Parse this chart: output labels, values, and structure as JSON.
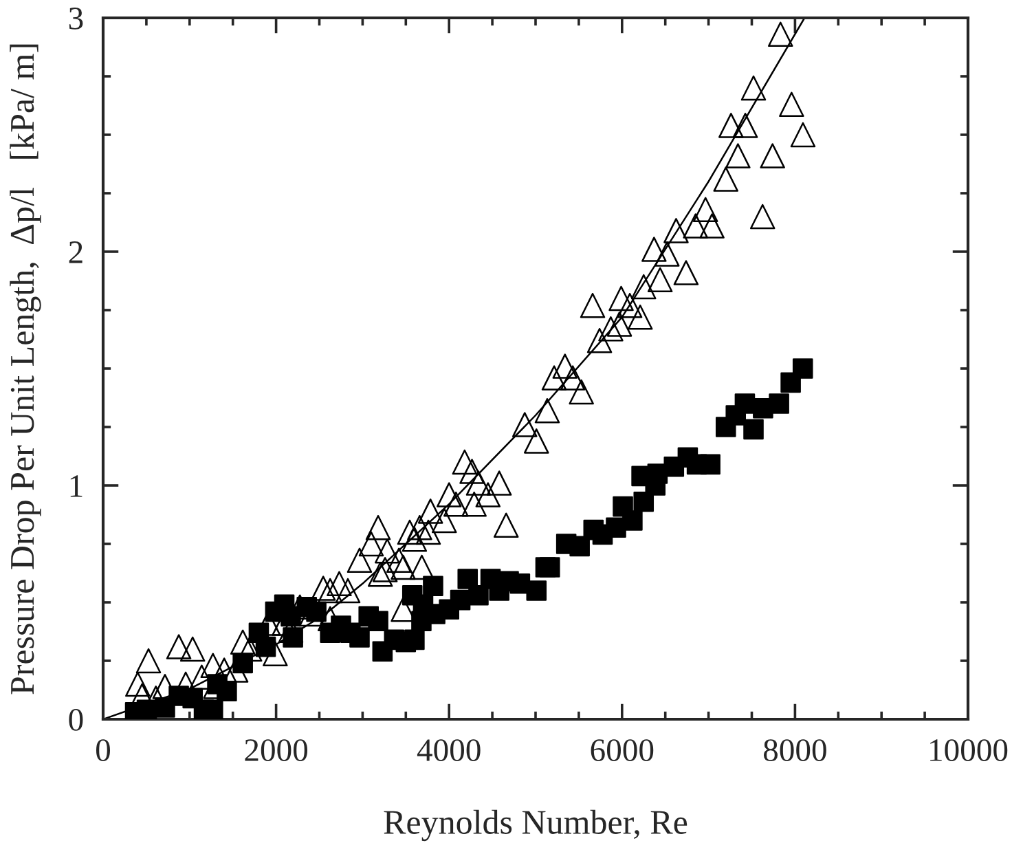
{
  "chart_data": {
    "type": "scatter",
    "xlabel": "Reynolds Number, Re",
    "ylabel": "Pressure Drop Per Unit Length,  Δp/l   [kPa/ m]",
    "xlim": [
      0,
      10000
    ],
    "ylim": [
      0,
      3
    ],
    "xticks": [
      0,
      2000,
      4000,
      6000,
      8000,
      10000
    ],
    "yticks": [
      0,
      1,
      2,
      3
    ],
    "grid": false,
    "legend": false,
    "series": [
      {
        "marker": "triangle",
        "color": "#000000",
        "x": [
          7832,
          7520,
          7960,
          8092,
          7260,
          7425,
          7340,
          7740,
          7200,
          7625,
          6965,
          6850,
          7040,
          6625,
          6370,
          6520,
          6740,
          6250,
          6440,
          5660,
          5990,
          6090,
          6210,
          5970,
          5870,
          5740,
          5340,
          5215,
          5430,
          5530,
          5135,
          4875,
          5010,
          4180,
          4265,
          4340,
          4580,
          4450,
          4290,
          4000,
          4080,
          3785,
          3945,
          4660,
          3660,
          3545,
          3760,
          3600,
          3180,
          3100,
          3285,
          2965,
          3420,
          3260,
          3685,
          3470,
          3205,
          2545,
          2730,
          2830,
          2625,
          2275,
          2410,
          2625,
          3470,
          1910,
          2095,
          2170,
          1615,
          1695,
          1990,
          875,
          1035,
          525,
          1270,
          1140,
          1400,
          1535,
          400,
          955,
          715,
          1300,
          450,
          610
        ],
        "values": [
          2.93,
          2.7,
          2.63,
          2.5,
          2.54,
          2.54,
          2.41,
          2.41,
          2.31,
          2.15,
          2.18,
          2.11,
          2.11,
          2.09,
          2.01,
          1.99,
          1.91,
          1.85,
          1.88,
          1.77,
          1.8,
          1.77,
          1.72,
          1.69,
          1.67,
          1.62,
          1.51,
          1.46,
          1.46,
          1.4,
          1.32,
          1.26,
          1.19,
          1.1,
          1.06,
          1.01,
          1.01,
          0.96,
          0.92,
          0.96,
          0.92,
          0.89,
          0.85,
          0.83,
          0.82,
          0.8,
          0.8,
          0.77,
          0.82,
          0.75,
          0.72,
          0.68,
          0.68,
          0.64,
          0.65,
          0.65,
          0.62,
          0.56,
          0.58,
          0.55,
          0.55,
          0.48,
          0.45,
          0.43,
          0.47,
          0.41,
          0.41,
          0.38,
          0.33,
          0.3,
          0.28,
          0.31,
          0.3,
          0.25,
          0.23,
          0.18,
          0.21,
          0.21,
          0.15,
          0.15,
          0.14,
          0.14,
          0.1,
          0.09
        ]
      },
      {
        "marker": "square",
        "color": "#000000",
        "x": [
          370,
          505,
          715,
          875,
          1035,
          1165,
          1270,
          1320,
          1430,
          1615,
          1800,
          1880,
          1990,
          2095,
          2170,
          2195,
          2355,
          2465,
          2625,
          2750,
          2860,
          2965,
          3070,
          3180,
          3230,
          3365,
          3500,
          3600,
          3575,
          3700,
          3815,
          3680,
          3840,
          4000,
          4130,
          4215,
          4340,
          4480,
          4580,
          4690,
          4820,
          5010,
          5115,
          5165,
          5355,
          5510,
          5670,
          5775,
          5930,
          6010,
          6120,
          6250,
          6225,
          6410,
          6385,
          6600,
          6760,
          6865,
          7020,
          7200,
          7520,
          7315,
          7420,
          7630,
          7815,
          7950,
          8090
        ],
        "values": [
          0.03,
          0.04,
          0.05,
          0.1,
          0.09,
          0.04,
          0.04,
          0.15,
          0.12,
          0.24,
          0.37,
          0.31,
          0.46,
          0.49,
          0.44,
          0.35,
          0.48,
          0.46,
          0.37,
          0.4,
          0.37,
          0.35,
          0.44,
          0.42,
          0.29,
          0.34,
          0.33,
          0.34,
          0.53,
          0.49,
          0.57,
          0.42,
          0.45,
          0.47,
          0.51,
          0.6,
          0.53,
          0.6,
          0.55,
          0.59,
          0.58,
          0.55,
          0.65,
          0.65,
          0.75,
          0.74,
          0.81,
          0.79,
          0.82,
          0.91,
          0.85,
          0.93,
          1.04,
          1.05,
          1.0,
          1.08,
          1.12,
          1.09,
          1.09,
          1.25,
          1.24,
          1.3,
          1.35,
          1.33,
          1.35,
          1.44,
          1.5
        ]
      },
      {
        "type": "line",
        "marker": "none",
        "line_style": "solid",
        "color": "#000000",
        "x": [
          0,
          1000,
          2000,
          2570,
          3000,
          4000,
          5000,
          6000,
          7000,
          8110
        ],
        "values": [
          0,
          0.13,
          0.32,
          0.45,
          0.58,
          0.92,
          1.3,
          1.72,
          2.3,
          3.0
        ]
      }
    ]
  }
}
